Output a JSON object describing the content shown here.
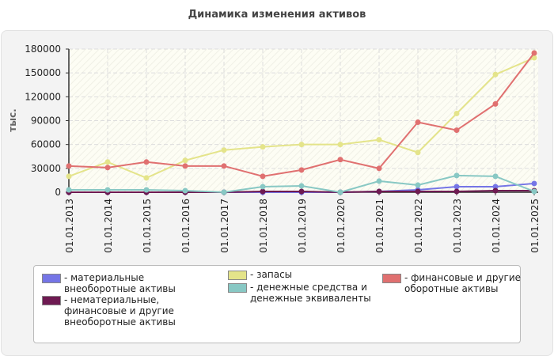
{
  "chart_data": {
    "type": "line",
    "title": "Динамика изменения активов",
    "ylabel": "тыс.",
    "xlabel": "",
    "ylim": [
      0,
      180000
    ],
    "yticks": [
      0,
      30000,
      60000,
      90000,
      120000,
      150000,
      180000
    ],
    "grid": true,
    "legend_position": "bottom",
    "categories": [
      "01.01.2013",
      "01.01.2014",
      "01.01.2015",
      "01.01.2016",
      "01.01.2017",
      "01.01.2018",
      "01.01.2019",
      "01.01.2020",
      "01.01.2021",
      "01.01.2022",
      "01.01.2023",
      "01.01.2024",
      "01.01.2025"
    ],
    "series": [
      {
        "name": "- материальные внеоборотные активы",
        "color": "#7575e6",
        "values": [
          0,
          0,
          0,
          0,
          0,
          0,
          0,
          0,
          1000,
          3000,
          7000,
          7000,
          11000
        ]
      },
      {
        "name": "- нематериальные, финансовые и другие внеоборотные активы",
        "color": "#6e1a52",
        "values": [
          0,
          0,
          0,
          0,
          0,
          1000,
          1000,
          0,
          1000,
          1000,
          1000,
          2000,
          2000
        ]
      },
      {
        "name": "- запасы",
        "color": "#e4e48a",
        "values": [
          20000,
          38000,
          18000,
          40000,
          53000,
          57000,
          60000,
          60000,
          66000,
          50000,
          99000,
          148000,
          169000
        ]
      },
      {
        "name": "- денежные средства и денежные эквиваленты",
        "color": "#88c8c4",
        "values": [
          3000,
          3000,
          3000,
          2000,
          0,
          7000,
          8000,
          0,
          14000,
          9000,
          21000,
          20000,
          1000
        ]
      },
      {
        "name": "- финансовые и другие оборотные активы",
        "color": "#e07070",
        "values": [
          33000,
          31000,
          38000,
          33000,
          33000,
          20000,
          28000,
          41000,
          30000,
          88000,
          78000,
          111000,
          175000
        ]
      }
    ]
  }
}
